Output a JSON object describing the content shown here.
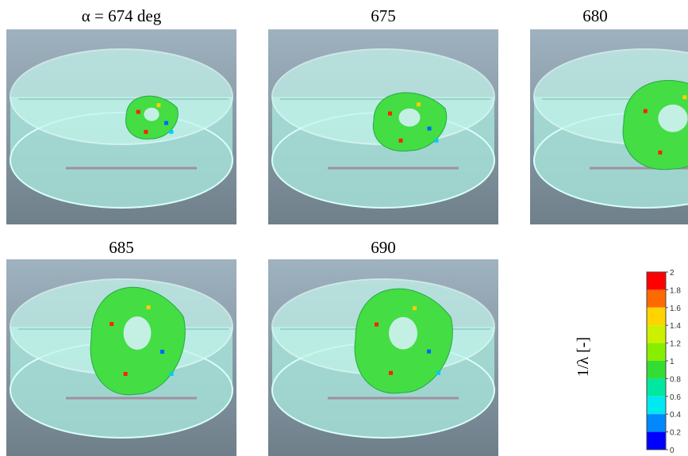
{
  "panels": [
    {
      "title": "α = 674 deg"
    },
    {
      "title": "675"
    },
    {
      "title": "680"
    },
    {
      "title": "685"
    },
    {
      "title": "690"
    }
  ],
  "colorbar": {
    "label": "1/λ [-]",
    "ticks": [
      2,
      1.8,
      1.6,
      1.4,
      1.2,
      1,
      0.8,
      0.6,
      0.4,
      0.2,
      0
    ],
    "colors": [
      "#ff0000",
      "#ff6a00",
      "#ffd400",
      "#ccf000",
      "#88ee00",
      "#33dd33",
      "#00e8a0",
      "#00e8f0",
      "#0088ff",
      "#0000ff"
    ]
  }
}
